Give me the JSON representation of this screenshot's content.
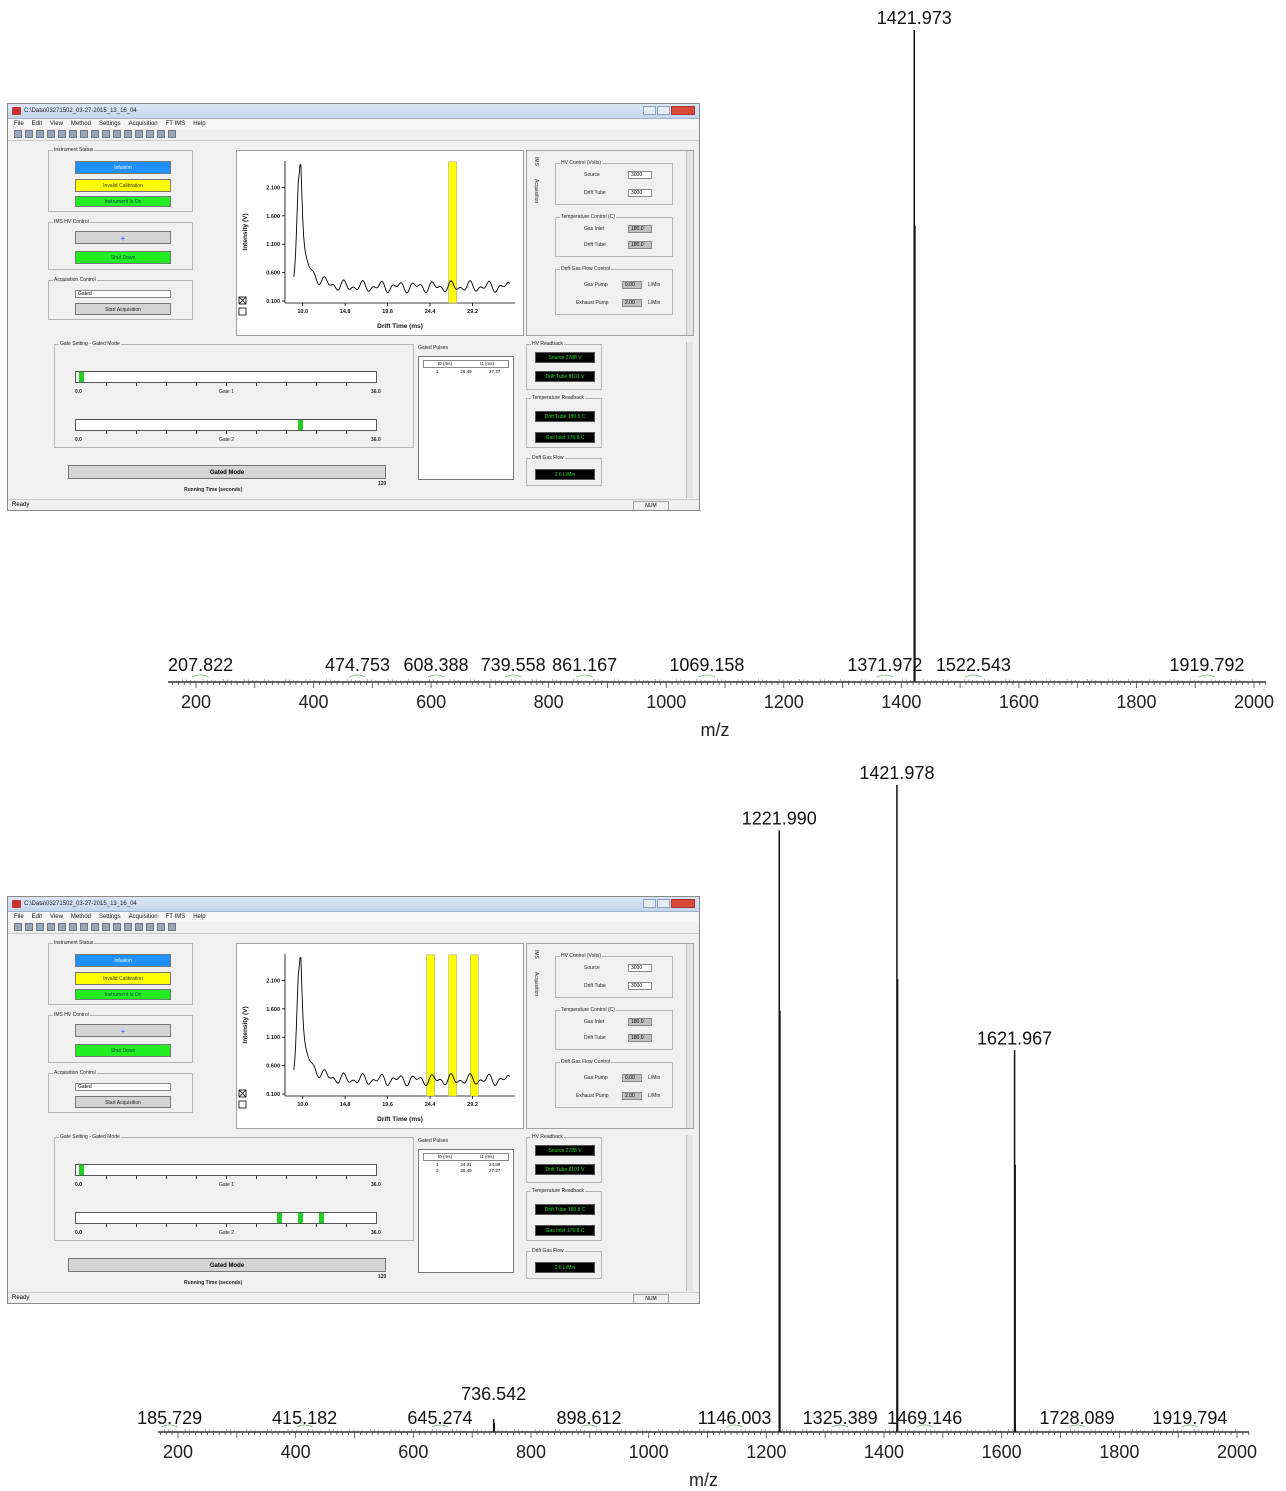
{
  "chart_data": [
    {
      "type": "line",
      "xlabel": "m/z",
      "xlim": [
        160,
        2005
      ],
      "ylim": [
        0,
        100
      ],
      "x_ticks": [
        200,
        400,
        600,
        800,
        1000,
        1200,
        1400,
        1600,
        1800,
        2000
      ],
      "peaks": [
        {
          "mz": 1421.973,
          "intensity": 100
        }
      ],
      "peak_labels": [
        "207.822",
        "474.753",
        "608.388",
        "739.558",
        "861.167",
        "1069.158",
        "1371.972",
        "1421.973",
        "1522.543",
        "1919.792"
      ],
      "label_positions": [
        207.822,
        474.753,
        608.388,
        739.558,
        861.167,
        1069.158,
        1371.972,
        1421.973,
        1522.543,
        1919.792
      ]
    },
    {
      "type": "line",
      "xlabel": "m/z",
      "xlim": [
        165,
        2035
      ],
      "ylim": [
        0,
        100
      ],
      "x_ticks": [
        200,
        400,
        600,
        800,
        1000,
        1200,
        1400,
        1600,
        1800,
        2000
      ],
      "peaks": [
        {
          "mz": 1221.99,
          "intensity": 93
        },
        {
          "mz": 1421.978,
          "intensity": 100
        },
        {
          "mz": 1621.967,
          "intensity": 59
        },
        {
          "mz": 736.542,
          "intensity": 2
        }
      ],
      "peak_labels": [
        "185.729",
        "415.182",
        "645.274",
        "736.542",
        "898.612",
        "1146.003",
        "1221.990",
        "1325.389",
        "1421.978",
        "1469.146",
        "1621.967",
        "1728.089",
        "1919.794"
      ],
      "label_positions": [
        185.729,
        415.182,
        645.274,
        736.542,
        898.612,
        1146.003,
        1221.99,
        1325.389,
        1421.978,
        1469.146,
        1621.967,
        1728.089,
        1919.794
      ]
    }
  ],
  "insets": [
    {
      "title": "C:\\Data\\03271502_03-27-2015_13_16_04",
      "menu": [
        "File",
        "Edit",
        "View",
        "Method",
        "Settings",
        "Acquisition",
        "FT IMS",
        "Help"
      ],
      "instrument_status": "Instrument Status",
      "status_buttons": [
        "Infusion",
        "Invalid Calibration",
        "Instrument Is On"
      ],
      "hv_control": "IMS HV Control",
      "shutdown": "Shut Down",
      "acq_control": "Acquisition Control",
      "acq_mode": "Gated",
      "start_acq": "Start Acquisition",
      "ylabel": "Intensity (V)",
      "xlabel": "Drift Time (ms)",
      "y_ticks": [
        "2.100",
        "1.600",
        "1.100",
        "0.600",
        "0.100"
      ],
      "x_ticks": [
        "10.0",
        "14.8",
        "19.6",
        "24.4",
        "29.2"
      ],
      "gate_windows_ms": [
        26.49
      ],
      "tab_ims": "IMS",
      "tab_acq": "Acquisition",
      "hv_group": "HV Control (Volts)",
      "source_lbl": "Source",
      "source_val": "3000",
      "drift_lbl": "Drift Tube",
      "drift_val": "3000",
      "temp_group": "Temperature Control (C)",
      "gasinlet_lbl": "Gas Inlet",
      "gasinlet_val": "180.0",
      "drifttemp_lbl": "Drift Tube",
      "drifttemp_val": "180.0",
      "flow_group": "Drift Gas Flow Control",
      "gaspump_lbl": "Gas Pump",
      "gaspump_val": "0.00",
      "exhaust_lbl": "Exhaust Pump",
      "exhaust_val": "2.00",
      "unit_lmin": "L/Min",
      "gate_group": "Gate Setting - Gated Mode",
      "gate1": "Gate 1",
      "gate2": "Gate 2",
      "gate_min": "0.0",
      "gate_max": "36.0",
      "gate1_fractions": [
        0.01
      ],
      "gate2_fractions": [
        0.74
      ],
      "gated_pulses": "Gated Pulses",
      "table_headers": [
        "t0 (ms)",
        "t1 (ms)"
      ],
      "table_rows": [
        [
          "1",
          "26.49",
          "27.37"
        ]
      ],
      "gated_mode": "Gated Mode",
      "run_time_max": "120",
      "running_time": "Running Time (seconds)",
      "hv_readback": "HV Readback",
      "rb_source": "Source 2788 V",
      "rb_drift": "Drift Tube 8101 V",
      "temp_readback": "Temperature Readback",
      "rb_dtemp": "Drift Tube 180.5 C",
      "rb_gtemp": "Gas Inlet 176.8 C",
      "flow_readback": "Drift Gas Flow",
      "rb_flow": "2.6 L/Min",
      "ready": "Ready",
      "num": "NUM"
    },
    {
      "title": "C:\\Data\\03271502_03-27-2015_13_16_04",
      "menu": [
        "File",
        "Edit",
        "View",
        "Method",
        "Settings",
        "Acquisition",
        "FT IMS",
        "Help"
      ],
      "instrument_status": "Instrument Status",
      "status_buttons": [
        "Infusion",
        "Invalid Calibration",
        "Instrument Is On"
      ],
      "hv_control": "IMS HV Control",
      "shutdown": "Shut Down",
      "acq_control": "Acquisition Control",
      "acq_mode": "Gated",
      "start_acq": "Start Acquisition",
      "ylabel": "Intensity (V)",
      "xlabel": "Drift Time (ms)",
      "y_ticks": [
        "2.100",
        "1.600",
        "1.100",
        "0.600",
        "0.100"
      ],
      "x_ticks": [
        "10.0",
        "14.8",
        "19.6",
        "24.4",
        "29.2"
      ],
      "gate_windows_ms": [
        24.01,
        26.49,
        28.95
      ],
      "tab_ims": "IMS",
      "tab_acq": "Acquisition",
      "hv_group": "HV Control (Volts)",
      "source_lbl": "Source",
      "source_val": "3000",
      "drift_lbl": "Drift Tube",
      "drift_val": "3000",
      "temp_group": "Temperature Control (C)",
      "gasinlet_lbl": "Gas Inlet",
      "gasinlet_val": "180.0",
      "drifttemp_lbl": "Drift Tube",
      "drifttemp_val": "180.0",
      "flow_group": "Drift Gas Flow Control",
      "gaspump_lbl": "Gas Pump",
      "gaspump_val": "0.00",
      "exhaust_lbl": "Exhaust Pump",
      "exhaust_val": "2.00",
      "unit_lmin": "L/Min",
      "gate_group": "Gate Setting - Gated Mode",
      "gate1": "Gate 1",
      "gate2": "Gate 2",
      "gate_min": "0.0",
      "gate_max": "36.0",
      "gate1_fractions": [
        0.01
      ],
      "gate2_fractions": [
        0.67,
        0.74,
        0.81
      ],
      "gated_pulses": "Gated Pulses",
      "table_headers": [
        "t0 (ms)",
        "t1 (ms)"
      ],
      "table_rows": [
        [
          "1",
          "24.01",
          "24.89"
        ],
        [
          "2",
          "26.49",
          "27.37"
        ]
      ],
      "gated_mode": "Gated Mode",
      "run_time_max": "120",
      "running_time": "Running Time (seconds)",
      "hv_readback": "HV Readback",
      "rb_source": "Source 2788 V",
      "rb_drift": "Drift Tube 8101 V",
      "temp_readback": "Temperature Readback",
      "rb_dtemp": "Drift Tube 180.8 C",
      "rb_gtemp": "Gas Inlet 176.8 C",
      "flow_readback": "Drift Gas Flow",
      "rb_flow": "2.6 L/Min",
      "ready": "Ready",
      "num": "NUM"
    }
  ]
}
